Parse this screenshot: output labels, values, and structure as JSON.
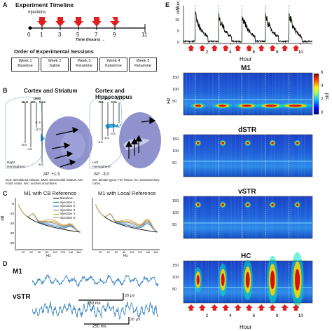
{
  "panelA": {
    "label": "A",
    "timeline_title": "Experiment Timeline",
    "injections_label": "Injections",
    "ticks": [
      "0",
      "1",
      "3",
      "5",
      "7",
      "9",
      "11"
    ],
    "time_label": "Time (hours) →",
    "sessions_title": "Order of Experimental Sessions",
    "sessions": [
      {
        "week": "Week 1",
        "drug": "Baseline"
      },
      {
        "week": "Week 2",
        "drug": "Saline"
      },
      {
        "week": "Week 3",
        "drug": "Ketamine"
      },
      {
        "week": "Week 4",
        "drug": "Ketamine"
      },
      {
        "week": "Week 5",
        "drug": "Ketamine"
      }
    ]
  },
  "panelB": {
    "label": "B",
    "left_title": "Cortex and Striatum",
    "right_title": "Cortex and Hippocampus",
    "left_probe_labels": [
      "DLS",
      "DMS",
      "MX",
      "NAc"
    ],
    "left_depths": [
      "-3.8",
      "-4.6",
      "-1.4",
      "-3.0",
      "-6.8"
    ],
    "left_hemisphere": "Right\nHemisphere",
    "left_ap": "AP: +1.3",
    "left_legend": "DLS: dorsolateral striatum, DMS: dorsomedial striatum, MX: motor cortex, NAc: nucleus accumbens",
    "right_probe_labels": [
      "DG",
      "FIS",
      "CA1",
      "S1"
    ],
    "right_depths": [
      "-3.6",
      "-3.2",
      "-2.6",
      "-1.4"
    ],
    "right_hemisphere": "Left\nHemisphere",
    "right_ap": "AP: -3.0",
    "right_legend": "DG: dentate gyrus, FIS: fissure, S1: somatosensory cortex"
  },
  "panelC": {
    "label": "C",
    "left_title": "M1 with CB Reference",
    "right_title": "M1 with Local Reference",
    "ylabel": "dB",
    "xlabel": "Hz",
    "y_ticks": [
      "-5",
      "-10",
      "-15",
      "-20",
      "-25"
    ],
    "x_ticks": [
      "20",
      "40",
      "60",
      "80",
      "100",
      "120",
      "140",
      "160"
    ],
    "legend": [
      "Baseline",
      "Injection 1",
      "Injection 2",
      "Injection 3",
      "Injection 4",
      "Injection 5"
    ],
    "colors": [
      "#000000",
      "#1f77b4",
      "#8fb8de",
      "#7a7a7a",
      "#d4a017",
      "#c8a96e"
    ]
  },
  "panelD": {
    "label": "D",
    "trace1": "M1",
    "trace2": "vSTR",
    "time_scale": "250 ms",
    "amp_scale": "20 μV",
    "trace_color": "#2f7fc1"
  },
  "panelE": {
    "label": "E",
    "speed_ylabel": "cm/sec",
    "speed_y_ticks": [
      "15",
      "10",
      "5",
      "0"
    ],
    "hour_ticks": [
      "2",
      "4",
      "6",
      "8",
      "10"
    ],
    "xlabel": "Hour",
    "spectro_ylabel": "Hz",
    "hz_ticks": [
      "150",
      "100",
      "50"
    ],
    "colorbar_ticks": [
      "6",
      "4",
      "2",
      "0"
    ],
    "colorbar_label": "std",
    "regions": [
      "M1",
      "dSTR",
      "vSTR",
      "HC"
    ],
    "arrow_color": "#e02020"
  }
}
